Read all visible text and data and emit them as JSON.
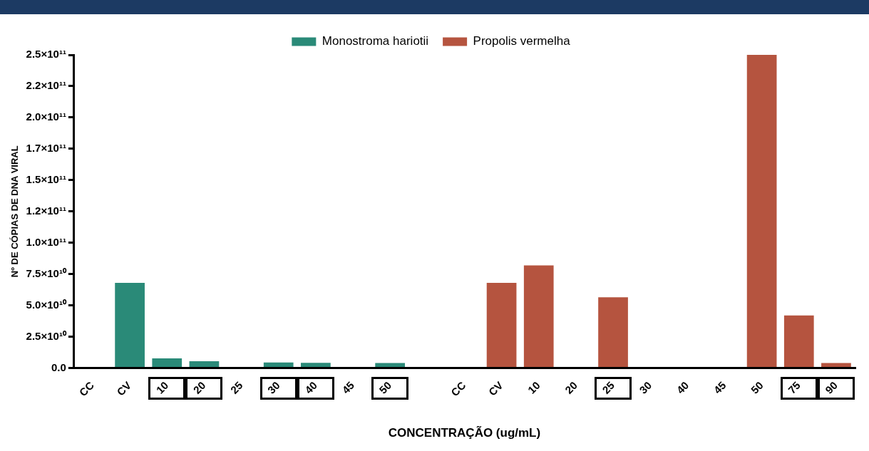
{
  "chart_data": {
    "type": "bar",
    "xlabel": "CONCENTRAÇÃO (ug/mL)",
    "ylabel": "Nº DE CÓPIAS DE DNA VIRAL",
    "categories": [
      "CC",
      "CV",
      "10",
      "20",
      "25",
      "30",
      "40",
      "45",
      "50",
      null,
      "CC",
      "CV",
      "10",
      "20",
      "25",
      "30",
      "40",
      "45",
      "50",
      "75",
      "90"
    ],
    "series": [
      {
        "name": "Monostroma hariotii",
        "color": "#2a8a78",
        "values": [
          0,
          68000000000.0,
          7700000000.0,
          5500000000.0,
          0,
          4500000000.0,
          4200000000.0,
          0,
          4000000000.0,
          null,
          null,
          null,
          null,
          null,
          null,
          null,
          null,
          null,
          null,
          null,
          null
        ]
      },
      {
        "name": "Propolis vermelha",
        "color": "#b5543f",
        "values": [
          null,
          null,
          null,
          null,
          null,
          null,
          null,
          null,
          null,
          null,
          0,
          68000000000.0,
          82000000000.0,
          0,
          56500000000.0,
          0,
          0,
          0,
          250000000000.0,
          42000000000.0,
          4000000000.0
        ]
      }
    ],
    "ylim": [
      0,
      250000000000.0
    ],
    "yticks": [
      {
        "value": 0,
        "label": "0.0"
      },
      {
        "value": 25000000000.0,
        "label": "2.5×10¹⁰"
      },
      {
        "value": 50000000000.0,
        "label": "5.0×10¹⁰"
      },
      {
        "value": 75000000000.0,
        "label": "7.5×10¹⁰"
      },
      {
        "value": 100000000000.0,
        "label": "1.0×10¹¹"
      },
      {
        "value": 125000000000.0,
        "label": "1.2×10¹¹"
      },
      {
        "value": 150000000000.0,
        "label": "1.5×10¹¹"
      },
      {
        "value": 175000000000.0,
        "label": "1.7×10¹¹"
      },
      {
        "value": 200000000000.0,
        "label": "2.0×10¹¹"
      },
      {
        "value": 225000000000.0,
        "label": "2.2×10¹¹"
      },
      {
        "value": 250000000000.0,
        "label": "2.5×10¹¹"
      }
    ],
    "grid": false,
    "legend": "top"
  }
}
